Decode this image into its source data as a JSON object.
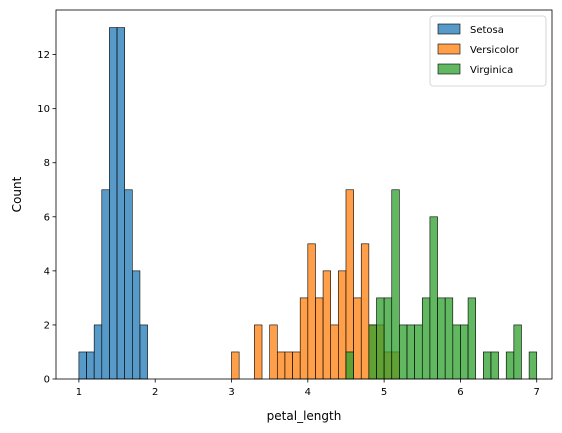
{
  "chart_data": {
    "type": "bar",
    "subtype": "overlaid-histogram",
    "title": "",
    "xlabel": "petal_length",
    "ylabel": "Count",
    "xlim": [
      0.7,
      7.2
    ],
    "ylim": [
      0,
      13.65
    ],
    "bin_width": 0.1,
    "xticks": [
      1,
      2,
      3,
      4,
      5,
      6,
      7
    ],
    "yticks": [
      0,
      2,
      4,
      6,
      8,
      10,
      12
    ],
    "grid": false,
    "legend_position": "top-right",
    "series": [
      {
        "name": "Setosa",
        "color": "#1f77b4",
        "bins": [
          {
            "x": 1.0,
            "count": 1
          },
          {
            "x": 1.1,
            "count": 1
          },
          {
            "x": 1.2,
            "count": 2
          },
          {
            "x": 1.3,
            "count": 7
          },
          {
            "x": 1.4,
            "count": 13
          },
          {
            "x": 1.5,
            "count": 13
          },
          {
            "x": 1.6,
            "count": 7
          },
          {
            "x": 1.7,
            "count": 4
          },
          {
            "x": 1.8,
            "count": 2
          }
        ]
      },
      {
        "name": "Versicolor",
        "color": "#ff7f0e",
        "bins": [
          {
            "x": 3.0,
            "count": 1
          },
          {
            "x": 3.3,
            "count": 2
          },
          {
            "x": 3.5,
            "count": 2
          },
          {
            "x": 3.6,
            "count": 1
          },
          {
            "x": 3.7,
            "count": 1
          },
          {
            "x": 3.8,
            "count": 1
          },
          {
            "x": 3.9,
            "count": 3
          },
          {
            "x": 4.0,
            "count": 5
          },
          {
            "x": 4.1,
            "count": 3
          },
          {
            "x": 4.2,
            "count": 4
          },
          {
            "x": 4.3,
            "count": 2
          },
          {
            "x": 4.4,
            "count": 4
          },
          {
            "x": 4.5,
            "count": 7
          },
          {
            "x": 4.6,
            "count": 3
          },
          {
            "x": 4.7,
            "count": 5
          },
          {
            "x": 4.8,
            "count": 2
          },
          {
            "x": 4.9,
            "count": 2
          },
          {
            "x": 5.0,
            "count": 1
          },
          {
            "x": 5.1,
            "count": 1
          }
        ]
      },
      {
        "name": "Virginica",
        "color": "#2ca02c",
        "bins": [
          {
            "x": 4.5,
            "count": 1
          },
          {
            "x": 4.8,
            "count": 2
          },
          {
            "x": 4.9,
            "count": 3
          },
          {
            "x": 5.0,
            "count": 3
          },
          {
            "x": 5.1,
            "count": 7
          },
          {
            "x": 5.2,
            "count": 2
          },
          {
            "x": 5.3,
            "count": 2
          },
          {
            "x": 5.4,
            "count": 2
          },
          {
            "x": 5.5,
            "count": 3
          },
          {
            "x": 5.6,
            "count": 6
          },
          {
            "x": 5.7,
            "count": 3
          },
          {
            "x": 5.8,
            "count": 3
          },
          {
            "x": 5.9,
            "count": 2
          },
          {
            "x": 6.0,
            "count": 2
          },
          {
            "x": 6.1,
            "count": 3
          },
          {
            "x": 6.3,
            "count": 1
          },
          {
            "x": 6.4,
            "count": 1
          },
          {
            "x": 6.6,
            "count": 1
          },
          {
            "x": 6.7,
            "count": 2
          },
          {
            "x": 6.9,
            "count": 1
          }
        ]
      }
    ]
  }
}
